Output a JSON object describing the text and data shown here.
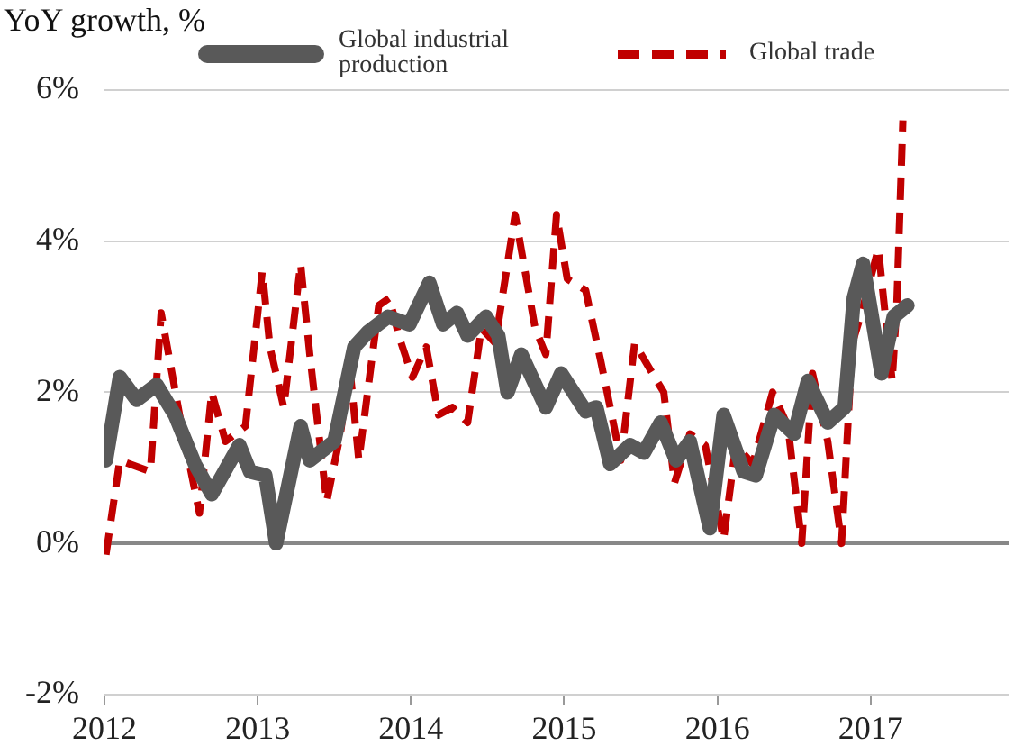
{
  "chart_data": {
    "type": "line",
    "ylabel": "YoY growth, %",
    "xlim": [
      2012,
      2017.9
    ],
    "xticks": [
      2012,
      2013,
      2014,
      2015,
      2016,
      2017
    ],
    "ylim": [
      -2,
      6
    ],
    "yticks": [
      {
        "value": -2,
        "label": "-2%"
      },
      {
        "value": 0,
        "label": "0%"
      },
      {
        "value": 2,
        "label": "2%"
      },
      {
        "value": 4,
        "label": "4%"
      },
      {
        "value": 6,
        "label": "6%"
      }
    ],
    "grid": "y",
    "legend": "top",
    "marker": "none",
    "series": [
      {
        "name": "Global industrial production",
        "color": "#595959",
        "line_style": "solid",
        "x": [
          2012.01,
          2012.1,
          2012.21,
          2012.34,
          2012.46,
          2012.59,
          2012.7,
          2012.88,
          2012.95,
          2013.05,
          2013.12,
          2013.28,
          2013.34,
          2013.5,
          2013.63,
          2013.72,
          2013.85,
          2013.99,
          2014.12,
          2014.21,
          2014.3,
          2014.37,
          2014.49,
          2014.57,
          2014.63,
          2014.72,
          2014.88,
          2014.98,
          2015.14,
          2015.21,
          2015.3,
          2015.43,
          2015.52,
          2015.63,
          2015.73,
          2015.82,
          2015.95,
          2016.04,
          2016.17,
          2016.25,
          2016.37,
          2016.5,
          2016.59,
          2016.72,
          2016.83,
          2016.89,
          2016.95,
          2017.07,
          2017.15,
          2017.24
        ],
        "values": [
          1.1,
          2.2,
          1.9,
          2.1,
          1.7,
          1.05,
          0.65,
          1.3,
          0.95,
          0.9,
          0,
          1.55,
          1.1,
          1.35,
          2.6,
          2.8,
          3.0,
          2.9,
          3.45,
          2.9,
          3.05,
          2.75,
          3.0,
          2.75,
          2.0,
          2.5,
          1.8,
          2.25,
          1.75,
          1.8,
          1.05,
          1.3,
          1.2,
          1.6,
          1.1,
          1.35,
          0.2,
          1.7,
          0.95,
          0.9,
          1.7,
          1.45,
          2.15,
          1.6,
          1.8,
          3.25,
          3.7,
          2.25,
          3.0,
          3.15
        ]
      },
      {
        "name": "Global trade",
        "color": "#c00000",
        "line_style": "dashed",
        "x": [
          2012.01,
          2012.1,
          2012.3,
          2012.37,
          2012.49,
          2012.62,
          2012.7,
          2012.79,
          2012.92,
          2013.03,
          2013.08,
          2013.17,
          2013.28,
          2013.34,
          2013.45,
          2013.54,
          2013.6,
          2013.66,
          2013.79,
          2013.86,
          2013.92,
          2014.01,
          2014.1,
          2014.18,
          2014.27,
          2014.37,
          2014.46,
          2014.55,
          2014.68,
          2014.81,
          2014.88,
          2014.95,
          2015.02,
          2015.14,
          2015.24,
          2015.37,
          2015.46,
          2015.59,
          2015.65,
          2015.72,
          2015.82,
          2015.92,
          2016.04,
          2016.12,
          2016.23,
          2016.36,
          2016.46,
          2016.55,
          2016.62,
          2016.72,
          2016.81,
          2016.88,
          2016.94,
          2017.05,
          2017.14,
          2017.17,
          2017.21
        ],
        "values": [
          -0.15,
          1.1,
          0.95,
          3.05,
          1.7,
          0.4,
          2.0,
          1.35,
          1.55,
          3.6,
          2.6,
          1.8,
          3.7,
          2.5,
          0.55,
          1.45,
          2.35,
          1.1,
          3.15,
          3.25,
          2.75,
          2.2,
          2.6,
          1.7,
          1.8,
          1.6,
          2.85,
          2.65,
          4.35,
          2.85,
          2.5,
          4.35,
          3.5,
          3.35,
          2.4,
          1.1,
          2.65,
          2.2,
          2.0,
          0.8,
          1.45,
          1.3,
          0.05,
          1.3,
          1.05,
          2.0,
          1.55,
          0,
          2.25,
          1.35,
          0,
          2.65,
          3.05,
          3.9,
          2.15,
          3.15,
          5.6
        ]
      }
    ]
  }
}
